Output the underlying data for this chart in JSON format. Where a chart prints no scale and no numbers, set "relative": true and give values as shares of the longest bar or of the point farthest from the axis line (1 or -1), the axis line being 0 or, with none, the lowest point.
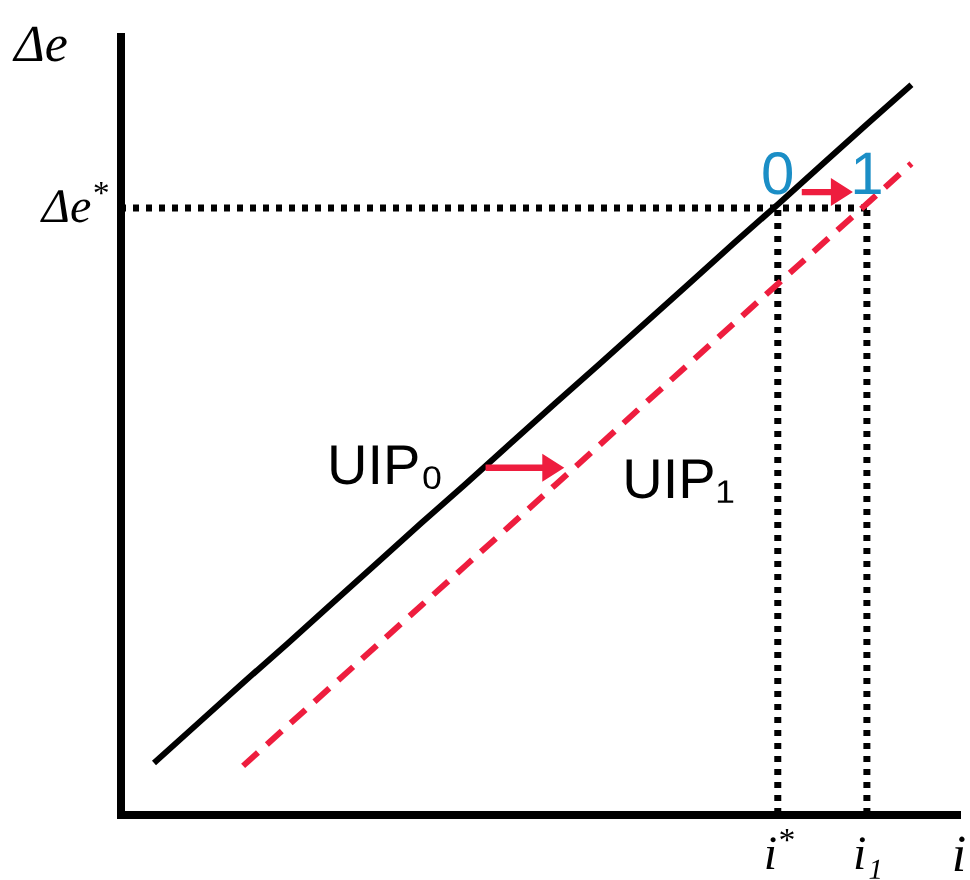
{
  "chart_data": {
    "type": "line",
    "relative": true,
    "xlabel": "i",
    "ylabel": "Δe",
    "categories": [
      null,
      null,
      null,
      null,
      null,
      null,
      null,
      null,
      null,
      null,
      null,
      null,
      null,
      null,
      "i$^{*}$",
      null,
      "i₁",
      null,
      null
    ],
    "series": [
      {
        "name": "UIP₀",
        "color": "#000000",
        "line_style": "solid",
        "values": [
          0.07,
          0.125,
          0.18,
          0.234,
          0.289,
          0.344,
          0.399,
          0.453,
          0.508,
          0.563,
          0.617,
          0.672,
          0.727,
          0.782,
          0.836,
          0.891,
          0.946,
          1,
          null
        ]
      },
      {
        "name": "UIP₁",
        "color": "#ee1d3e",
        "line_style": "dashed",
        "values": [
          null,
          null,
          0.066,
          0.121,
          0.176,
          0.231,
          0.286,
          0.341,
          0.396,
          0.451,
          0.506,
          0.562,
          0.617,
          0.672,
          0.727,
          0.782,
          0.837,
          0.892,
          null
        ]
      }
    ],
    "ref_lines": [
      {
        "axis": "y",
        "value": 0.831,
        "label": "Δe$^{*}$",
        "color": "#000000",
        "line_style": "dotted"
      },
      {
        "axis": "x",
        "value": "i$^{*}$",
        "color": "#000000",
        "line_style": "dotted"
      },
      {
        "axis": "x",
        "value": "i₁",
        "color": "#000000",
        "line_style": "dotted"
      }
    ],
    "annotations": [
      {
        "text": "0",
        "x": "i$^{*}$",
        "y": 0.831
      },
      {
        "text": "1",
        "x": "i₁",
        "y": 0.831
      }
    ]
  }
}
